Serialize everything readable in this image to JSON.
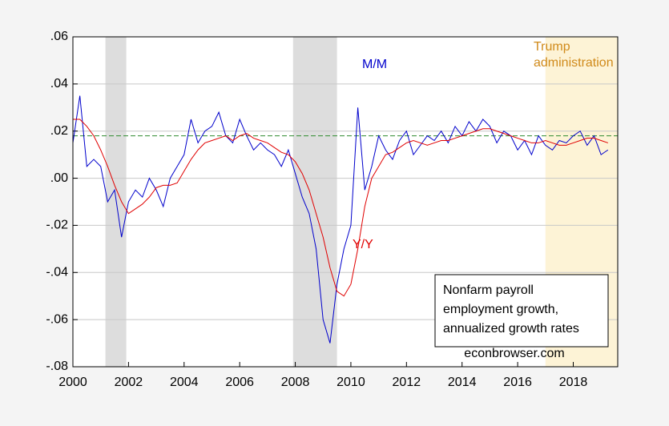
{
  "chart_data": {
    "type": "line",
    "annotations": [
      "Trump",
      "administration"
    ],
    "textbox": [
      "Nonfarm payroll",
      "employment growth,",
      "annualized growth rates"
    ],
    "source": "econbrowser.com",
    "x": [
      2000,
      2000.25,
      2000.5,
      2000.75,
      2001,
      2001.25,
      2001.5,
      2001.75,
      2002,
      2002.25,
      2002.5,
      2002.75,
      2003,
      2003.25,
      2003.5,
      2003.75,
      2004,
      2004.25,
      2004.5,
      2004.75,
      2005,
      2005.25,
      2005.5,
      2005.75,
      2006,
      2006.25,
      2006.5,
      2006.75,
      2007,
      2007.25,
      2007.5,
      2007.75,
      2008,
      2008.25,
      2008.5,
      2008.75,
      2009,
      2009.25,
      2009.5,
      2009.75,
      2010,
      2010.25,
      2010.5,
      2010.75,
      2011,
      2011.25,
      2011.5,
      2011.75,
      2012,
      2012.25,
      2012.5,
      2012.75,
      2013,
      2013.25,
      2013.5,
      2013.75,
      2014,
      2014.25,
      2014.5,
      2014.75,
      2015,
      2015.25,
      2015.5,
      2015.75,
      2016,
      2016.25,
      2016.5,
      2016.75,
      2017,
      2017.25,
      2017.5,
      2017.75,
      2018,
      2018.25,
      2018.5,
      2018.75,
      2019,
      2019.25
    ],
    "series": [
      {
        "name": "M/M",
        "color": "#0000cc",
        "values": [
          0.015,
          0.035,
          0.005,
          0.008,
          0.005,
          -0.01,
          -0.005,
          -0.025,
          -0.01,
          -0.005,
          -0.008,
          0.0,
          -0.005,
          -0.012,
          0.0,
          0.005,
          0.01,
          0.025,
          0.015,
          0.02,
          0.022,
          0.028,
          0.018,
          0.015,
          0.025,
          0.018,
          0.012,
          0.015,
          0.012,
          0.01,
          0.005,
          0.012,
          0.002,
          -0.008,
          -0.015,
          -0.03,
          -0.06,
          -0.07,
          -0.045,
          -0.03,
          -0.02,
          0.03,
          -0.005,
          0.005,
          0.018,
          0.012,
          0.008,
          0.016,
          0.02,
          0.01,
          0.014,
          0.018,
          0.016,
          0.02,
          0.015,
          0.022,
          0.018,
          0.024,
          0.02,
          0.025,
          0.022,
          0.015,
          0.02,
          0.018,
          0.012,
          0.016,
          0.01,
          0.018,
          0.014,
          0.012,
          0.016,
          0.015,
          0.018,
          0.02,
          0.014,
          0.018,
          0.01,
          0.012
        ]
      },
      {
        "name": "Y/Y",
        "color": "#e00000",
        "values": [
          0.025,
          0.025,
          0.022,
          0.018,
          0.012,
          0.005,
          -0.003,
          -0.01,
          -0.015,
          -0.013,
          -0.011,
          -0.008,
          -0.004,
          -0.003,
          -0.003,
          -0.002,
          0.003,
          0.008,
          0.012,
          0.015,
          0.016,
          0.017,
          0.018,
          0.016,
          0.018,
          0.019,
          0.017,
          0.016,
          0.015,
          0.013,
          0.011,
          0.01,
          0.007,
          0.002,
          -0.005,
          -0.015,
          -0.025,
          -0.038,
          -0.048,
          -0.05,
          -0.045,
          -0.03,
          -0.012,
          0.0,
          0.005,
          0.01,
          0.011,
          0.013,
          0.015,
          0.016,
          0.015,
          0.014,
          0.015,
          0.016,
          0.016,
          0.017,
          0.018,
          0.019,
          0.02,
          0.021,
          0.021,
          0.02,
          0.019,
          0.018,
          0.017,
          0.016,
          0.015,
          0.015,
          0.016,
          0.015,
          0.014,
          0.014,
          0.015,
          0.016,
          0.017,
          0.017,
          0.016,
          0.015
        ]
      }
    ],
    "hline": {
      "value": 0.018,
      "color": "#2e8b2e"
    },
    "shaded": [
      {
        "start": 2001.17,
        "end": 2001.92,
        "color": "#dddddd"
      },
      {
        "start": 2007.92,
        "end": 2009.5,
        "color": "#dddddd"
      },
      {
        "start": 2017.0,
        "end": 2019.6,
        "color": "#fdf3d6"
      }
    ],
    "xlim": [
      2000,
      2019.6
    ],
    "xticks": [
      2000,
      2002,
      2004,
      2006,
      2008,
      2010,
      2012,
      2014,
      2016,
      2018
    ],
    "ylim": [
      -0.08,
      0.06
    ],
    "yticks": [
      {
        "value": -0.08,
        "label": "-.08"
      },
      {
        "value": -0.06,
        "label": "-.06"
      },
      {
        "value": -0.04,
        "label": "-.04"
      },
      {
        "value": -0.02,
        "label": "-.02"
      },
      {
        "value": 0,
        "label": ".00"
      },
      {
        "value": 0.02,
        "label": ".02"
      },
      {
        "value": 0.04,
        "label": ".04"
      },
      {
        "value": 0.06,
        "label": ".06"
      }
    ],
    "grid": true
  }
}
